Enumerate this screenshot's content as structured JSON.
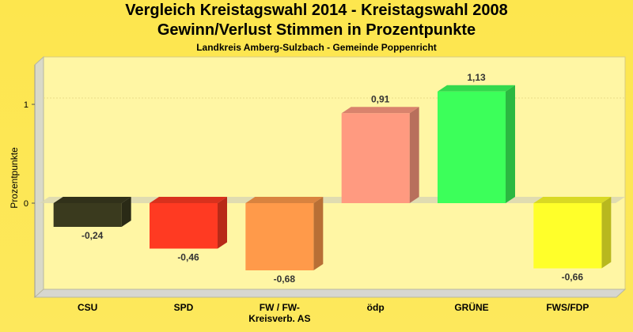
{
  "chart_data": {
    "type": "bar",
    "title": "Vergleich Kreistagswahl 2014 - Kreistagswahl 2008",
    "subtitle_line": "Gewinn/Verlust Stimmen in Prozentpunkte",
    "subtitle": "Landkreis Amberg-Sulzbach - Gemeinde Poppenricht",
    "ylabel": "Prozentpunkte",
    "xlabel": "",
    "categories": [
      "CSU",
      "SPD",
      "FW / FW-\nKreisverb. AS",
      "ödp",
      "GRÜNE",
      "FWS/FDP"
    ],
    "values": [
      -0.24,
      -0.46,
      -0.68,
      0.91,
      1.13,
      -0.66
    ],
    "value_labels": [
      "-0,24",
      "-0,46",
      "-0,68",
      "0,91",
      "1,13",
      "-0,66"
    ],
    "colors": [
      "#3a3a1e",
      "#ff3a22",
      "#ff9a4a",
      "#ff9a80",
      "#3cff5a",
      "#ffff2a"
    ],
    "yticks": [
      0,
      1
    ],
    "ytick_labels": [
      "0",
      "1"
    ],
    "ylim": [
      -0.9,
      1.3
    ],
    "grid": false,
    "legend": "none"
  }
}
